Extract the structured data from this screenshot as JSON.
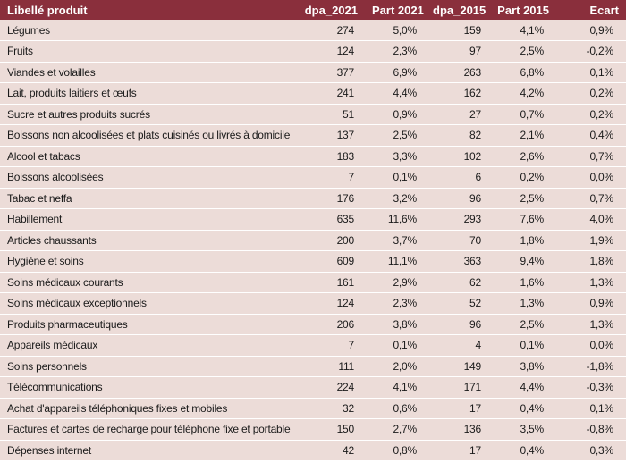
{
  "table": {
    "headers": [
      "Libellé produit",
      "dpa_2021",
      "Part 2021",
      "dpa_2015",
      "Part 2015",
      "Ecart"
    ],
    "rows": [
      [
        "Légumes",
        "274",
        "5,0%",
        "159",
        "4,1%",
        "0,9%"
      ],
      [
        "Fruits",
        "124",
        "2,3%",
        "97",
        "2,5%",
        "-0,2%"
      ],
      [
        "Viandes et volailles",
        "377",
        "6,9%",
        "263",
        "6,8%",
        "0,1%"
      ],
      [
        "Lait, produits laitiers et œufs",
        "241",
        "4,4%",
        "162",
        "4,2%",
        "0,2%"
      ],
      [
        "Sucre et autres produits sucrés",
        "51",
        "0,9%",
        "27",
        "0,7%",
        "0,2%"
      ],
      [
        "Boissons non alcoolisées et plats cuisinés ou livrés à domicile",
        "137",
        "2,5%",
        "82",
        "2,1%",
        "0,4%"
      ],
      [
        "Alcool et tabacs",
        "183",
        "3,3%",
        "102",
        "2,6%",
        "0,7%"
      ],
      [
        "Boissons alcoolisées",
        "7",
        "0,1%",
        "6",
        "0,2%",
        "0,0%"
      ],
      [
        "Tabac et neffa",
        "176",
        "3,2%",
        "96",
        "2,5%",
        "0,7%"
      ],
      [
        "Habillement",
        "635",
        "11,6%",
        "293",
        "7,6%",
        "4,0%"
      ],
      [
        "Articles chaussants",
        "200",
        "3,7%",
        "70",
        "1,8%",
        "1,9%"
      ],
      [
        "Hygiène et soins",
        "609",
        "11,1%",
        "363",
        "9,4%",
        "1,8%"
      ],
      [
        "Soins médicaux courants",
        "161",
        "2,9%",
        "62",
        "1,6%",
        "1,3%"
      ],
      [
        "Soins médicaux exceptionnels",
        "124",
        "2,3%",
        "52",
        "1,3%",
        "0,9%"
      ],
      [
        "Produits pharmaceutiques",
        "206",
        "3,8%",
        "96",
        "2,5%",
        "1,3%"
      ],
      [
        "Appareils médicaux",
        "7",
        "0,1%",
        "4",
        "0,1%",
        "0,0%"
      ],
      [
        "Soins personnels",
        "111",
        "2,0%",
        "149",
        "3,8%",
        "-1,8%"
      ],
      [
        "Télécommunications",
        "224",
        "4,1%",
        "171",
        "4,4%",
        "-0,3%"
      ],
      [
        "Achat d'appareils téléphoniques fixes et mobiles",
        "32",
        "0,6%",
        "17",
        "0,4%",
        "0,1%"
      ],
      [
        "Factures et cartes de recharge pour téléphone fixe et portable",
        "150",
        "2,7%",
        "136",
        "3,5%",
        "-0,8%"
      ],
      [
        "Dépenses internet",
        "42",
        "0,8%",
        "17",
        "0,4%",
        "0,3%"
      ]
    ]
  }
}
